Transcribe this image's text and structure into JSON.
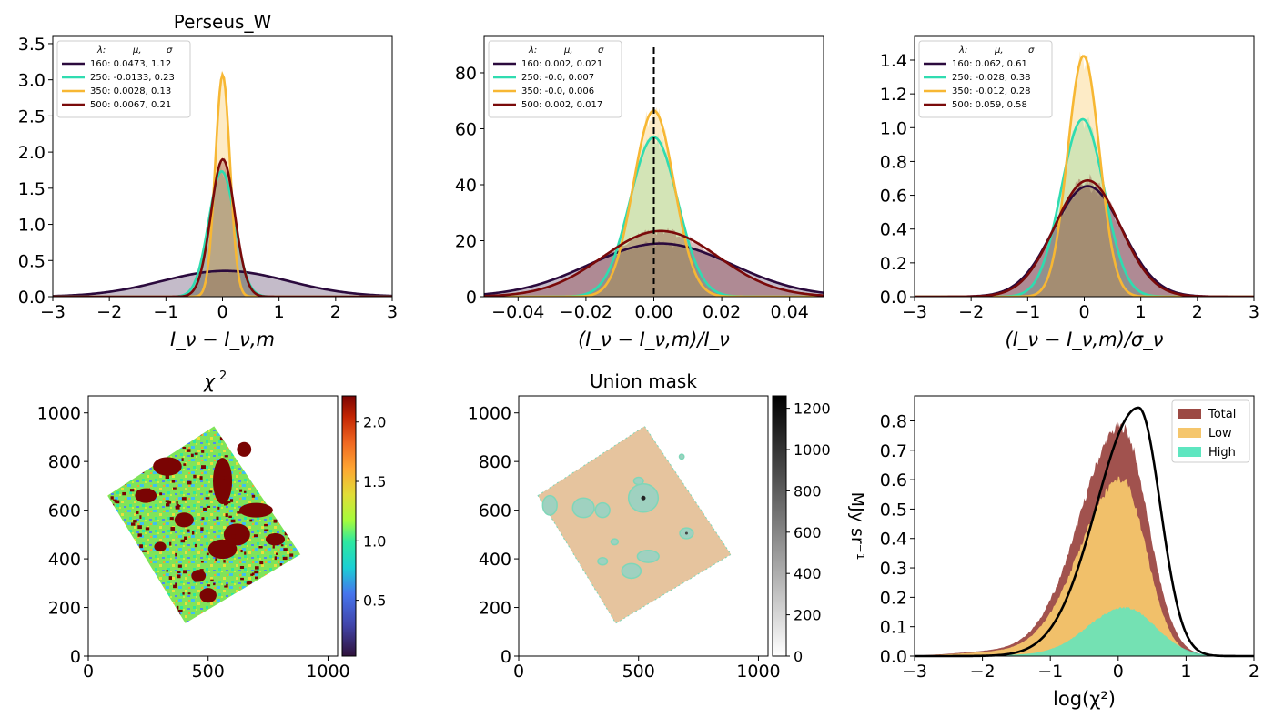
{
  "chart_data": [
    {
      "type": "area",
      "title": "Perseus_W",
      "xlabel": "I_ν − I_ν,m",
      "xlim": [
        -3,
        3
      ],
      "ylim": [
        0,
        3.6
      ],
      "xticks": [
        "−3",
        "−2",
        "−1",
        "0",
        "1",
        "2",
        "3"
      ],
      "xtick_values": [
        -3,
        -2,
        -1,
        0,
        1,
        2,
        3
      ],
      "yticks": [
        "0.0",
        "0.5",
        "1.0",
        "1.5",
        "2.0",
        "2.5",
        "3.0",
        "3.5"
      ],
      "ytick_values": [
        0,
        0.5,
        1,
        1.5,
        2,
        2.5,
        3,
        3.5
      ],
      "legend_header": [
        "λ:",
        "μ,",
        "σ"
      ],
      "legend_position": "upper-left",
      "series": [
        {
          "name": "160: 0.0473,  1.12",
          "color": "#2b0a3d",
          "mu": 0.0473,
          "sigma": 1.12
        },
        {
          "name": "250: -0.0133,  0.23",
          "color": "#2fdcb0",
          "mu": -0.0133,
          "sigma": 0.23
        },
        {
          "name": "350: 0.0028,  0.13",
          "color": "#f7b733",
          "mu": 0.0028,
          "sigma": 0.13
        },
        {
          "name": "500: 0.0067,  0.21",
          "color": "#7a0a0a",
          "mu": 0.0067,
          "sigma": 0.21
        }
      ]
    },
    {
      "type": "area",
      "title": "",
      "xlabel": "(I_ν − I_ν,m)/I_ν",
      "xlim": [
        -0.05,
        0.05
      ],
      "ylim": [
        0,
        93
      ],
      "xticks": [
        "−0.04",
        "−0.02",
        "0.00",
        "0.02",
        "0.04"
      ],
      "xtick_values": [
        -0.04,
        -0.02,
        0,
        0.02,
        0.04
      ],
      "yticks": [
        "0",
        "20",
        "40",
        "60",
        "80"
      ],
      "ytick_values": [
        0,
        20,
        40,
        60,
        80
      ],
      "vline_x": 0,
      "legend_header": [
        "λ:",
        "μ,",
        "σ"
      ],
      "legend_position": "upper-left",
      "series": [
        {
          "name": "160: 0.002,  0.021",
          "color": "#2b0a3d",
          "mu": 0.002,
          "sigma": 0.021
        },
        {
          "name": "250: -0.0,  0.007",
          "color": "#2fdcb0",
          "mu": 0.0,
          "sigma": 0.007
        },
        {
          "name": "350: -0.0,  0.006",
          "color": "#f7b733",
          "mu": 0.0,
          "sigma": 0.006
        },
        {
          "name": "500: 0.002,  0.017",
          "color": "#7a0a0a",
          "mu": 0.002,
          "sigma": 0.017
        }
      ]
    },
    {
      "type": "area",
      "title": "",
      "xlabel": "(I_ν − I_ν,m)/σ_ν",
      "xlim": [
        -3,
        3
      ],
      "ylim": [
        0,
        1.54
      ],
      "xticks": [
        "−3",
        "−2",
        "−1",
        "0",
        "1",
        "2",
        "3"
      ],
      "xtick_values": [
        -3,
        -2,
        -1,
        0,
        1,
        2,
        3
      ],
      "yticks": [
        "0.0",
        "0.2",
        "0.4",
        "0.6",
        "0.8",
        "1.0",
        "1.2",
        "1.4"
      ],
      "ytick_values": [
        0,
        0.2,
        0.4,
        0.6,
        0.8,
        1.0,
        1.2,
        1.4
      ],
      "legend_header": [
        "λ:",
        "μ,",
        "σ"
      ],
      "legend_position": "upper-left",
      "series": [
        {
          "name": "160: 0.062,  0.61",
          "color": "#2b0a3d",
          "mu": 0.062,
          "sigma": 0.61
        },
        {
          "name": "250: -0.028,  0.38",
          "color": "#2fdcb0",
          "mu": -0.028,
          "sigma": 0.38
        },
        {
          "name": "350: -0.012,  0.28",
          "color": "#f7b733",
          "mu": -0.012,
          "sigma": 0.28
        },
        {
          "name": "500: 0.059,  0.58",
          "color": "#7a0a0a",
          "mu": 0.059,
          "sigma": 0.58
        }
      ]
    },
    {
      "type": "heatmap",
      "title": "χ²",
      "xlim": [
        0,
        1040
      ],
      "ylim": [
        0,
        1070
      ],
      "xticks": [
        "0",
        "500",
        "1000"
      ],
      "xtick_values": [
        0,
        500,
        1000
      ],
      "yticks": [
        "0",
        "200",
        "400",
        "600",
        "800",
        "1000"
      ],
      "ytick_values": [
        0,
        200,
        400,
        600,
        800,
        1000
      ],
      "colorbar": {
        "range": [
          0.03,
          2.22
        ],
        "ticks": [
          "0.5",
          "1.0",
          "1.5",
          "2.0"
        ],
        "tick_values": [
          0.5,
          1.0,
          1.5,
          2.0
        ],
        "colormap": "turbo"
      },
      "region_corners": [
        [
          80,
          660
        ],
        [
          525,
          945
        ],
        [
          885,
          418
        ],
        [
          405,
          135
        ]
      ]
    },
    {
      "type": "heatmap",
      "title": "Union mask",
      "xlim": [
        0,
        1040
      ],
      "ylim": [
        0,
        1070
      ],
      "xticks": [
        "0",
        "500",
        "1000"
      ],
      "xtick_values": [
        0,
        500,
        1000
      ],
      "yticks": [
        "0",
        "200",
        "400",
        "600",
        "800",
        "1000"
      ],
      "ytick_values": [
        0,
        200,
        400,
        600,
        800,
        1000
      ],
      "colorbar": {
        "range": [
          0,
          1260
        ],
        "ticks": [
          "0",
          "200",
          "400",
          "600",
          "800",
          "1000",
          "1200"
        ],
        "tick_values": [
          0,
          200,
          400,
          600,
          800,
          1000,
          1200
        ],
        "label": "MJy sr⁻¹",
        "colormap": "greys"
      },
      "region_corners": [
        [
          80,
          660
        ],
        [
          525,
          945
        ],
        [
          885,
          418
        ],
        [
          405,
          135
        ]
      ],
      "colors": {
        "base": "#e6c49e",
        "mask": "#9fd1c0",
        "mask_edge": "#7fd6b8"
      }
    },
    {
      "type": "area",
      "title": "",
      "xlabel": "log(χ²)",
      "xlim": [
        -3,
        2
      ],
      "ylim": [
        0,
        0.885
      ],
      "xticks": [
        "−3",
        "−2",
        "−1",
        "0",
        "1",
        "2"
      ],
      "xtick_values": [
        -3,
        -2,
        -1,
        0,
        1,
        2
      ],
      "yticks": [
        "0.0",
        "0.1",
        "0.2",
        "0.3",
        "0.4",
        "0.5",
        "0.6",
        "0.7",
        "0.8"
      ],
      "ytick_values": [
        0,
        0.1,
        0.2,
        0.3,
        0.4,
        0.5,
        0.6,
        0.7,
        0.8
      ],
      "legend_position": "upper-right",
      "series": [
        {
          "name": "Total",
          "color": "#9c4944",
          "peak": 0.78,
          "peak_x": 0.05
        },
        {
          "name": "Low",
          "color": "#f5c66c",
          "peak": 0.6,
          "peak_x": 0.05
        },
        {
          "name": "High",
          "color": "#5ee6c0",
          "peak": 0.165,
          "peak_x": 0.1
        }
      ],
      "curve": {
        "color": "#000000",
        "peak": 0.845,
        "peak_x": 0.3
      }
    }
  ]
}
